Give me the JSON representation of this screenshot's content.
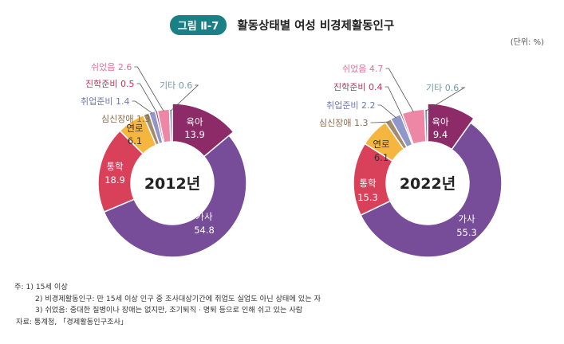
{
  "header": {
    "figure_no": "그림 Ⅱ-7",
    "title": "활동상태별 여성 비경제활동인구",
    "unit": "(단위: %)"
  },
  "colors": {
    "육아": "#8c2b67",
    "가사": "#774c98",
    "통학": "#d9405a",
    "연로": "#f4b63f",
    "심신장애": "#a58a6e",
    "취업준비": "#8f98c8",
    "진학준비": "#c8446c",
    "쉬었음": "#ee87a6",
    "기타": "#6f9aa8",
    "badge": "#1b7f86"
  },
  "chart_data": [
    {
      "type": "pie",
      "center_label": "2012년",
      "categories": [
        "육아",
        "가사",
        "통학",
        "연로",
        "심신장애",
        "취업준비",
        "진학준비",
        "쉬었음",
        "기타"
      ],
      "values": [
        13.9,
        54.8,
        18.9,
        6.1,
        1.3,
        1.4,
        0.5,
        2.6,
        0.6
      ],
      "value_labels": [
        "13.9",
        "54.8",
        "18.9",
        "6.1",
        "1.3",
        "1.4",
        "0.5",
        "2.6",
        "0.6"
      ]
    },
    {
      "type": "pie",
      "center_label": "2022년",
      "categories": [
        "육아",
        "가사",
        "통학",
        "연로",
        "심신장애",
        "취업준비",
        "진학준비",
        "쉬었음",
        "기타"
      ],
      "values": [
        9.4,
        55.3,
        15.3,
        6.1,
        1.3,
        2.2,
        0.4,
        4.7,
        0.6
      ],
      "value_labels": [
        "9.4",
        "55.3",
        "15.3",
        "6.1",
        "1.3",
        "2.2",
        "0.4",
        "4.7",
        "0.6"
      ]
    }
  ],
  "notes": {
    "line1": "주: 1) 15세 이상",
    "line2": "2) 비경제활동인구: 만 15세 이상 인구 중 조사대상기간에 취업도 실업도 아닌 상태에 있는 자",
    "line3": "3) 쉬었음: 중대한 질병이나 장애는 없지만, 조기퇴직 · 명퇴 등으로 인해 쉬고 있는 사람",
    "source": "자료: 통계청, 「경제활동인구조사」"
  }
}
